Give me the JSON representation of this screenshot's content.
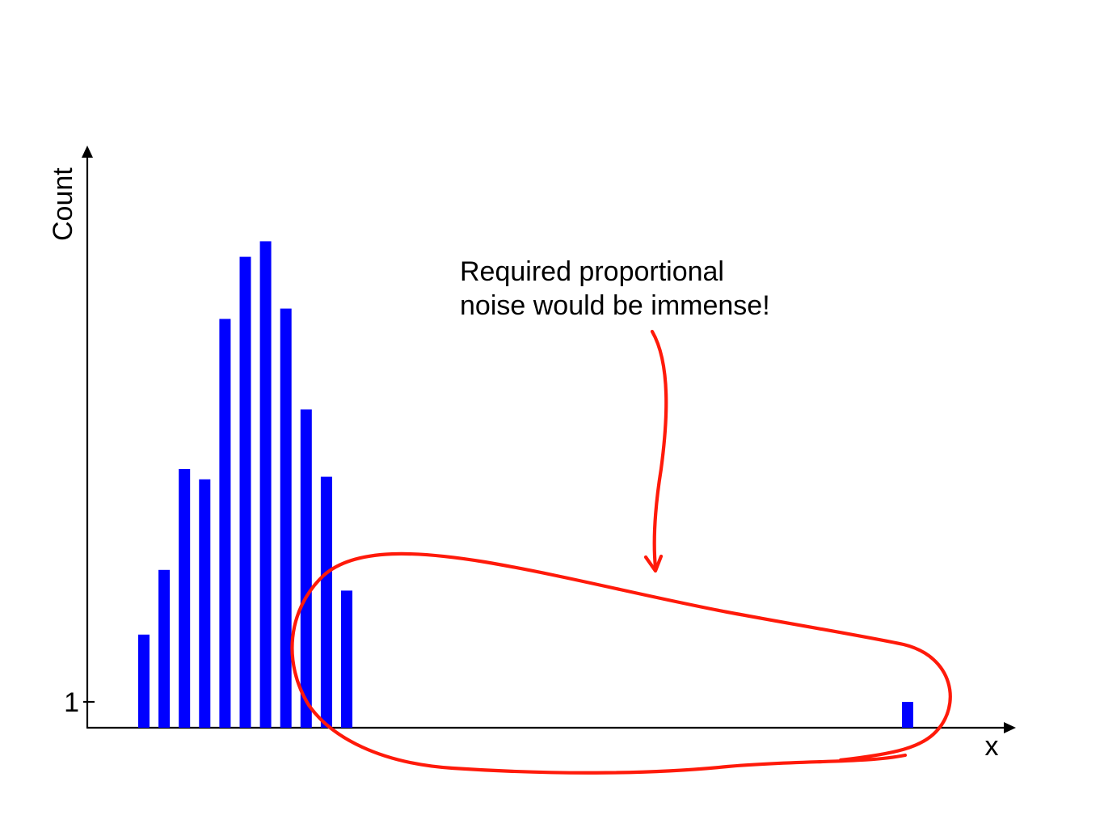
{
  "chart_data": {
    "type": "bar",
    "xlabel": "x",
    "ylabel": "Count",
    "y_tick_labels": [
      "1"
    ],
    "bar_color": "#0000ff",
    "annotation_color": "#ff1a0a",
    "main_bars": [
      3.6,
      6.1,
      10.0,
      9.6,
      15.8,
      18.2,
      18.8,
      16.2,
      12.3,
      9.7,
      5.3
    ],
    "outlier_value": 1,
    "ylim": [
      0,
      28
    ],
    "annotation": {
      "line1": "Required proportional",
      "line2": "noise would be immense!"
    }
  }
}
